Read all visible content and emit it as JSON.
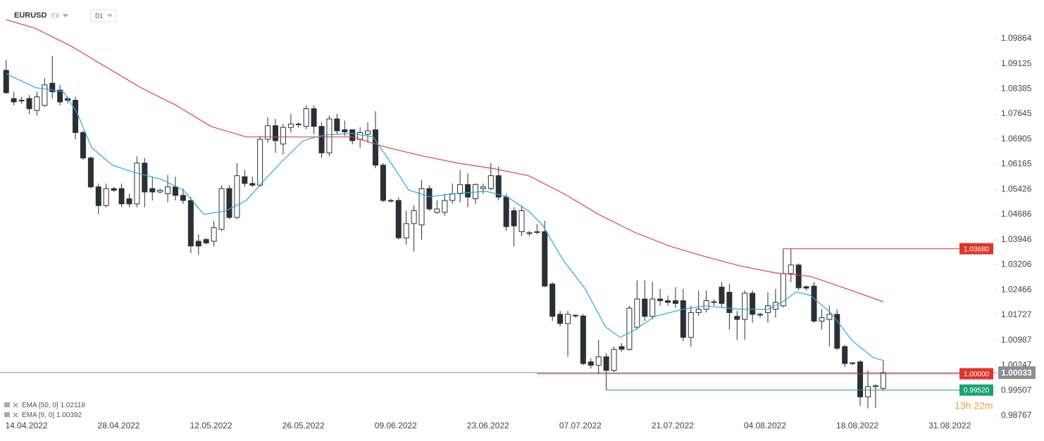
{
  "header": {
    "symbol": "EURUSD",
    "market": "FX",
    "interval": "D1"
  },
  "chart_data": {
    "type": "candlestick",
    "open": [
      1.0893,
      1.081,
      1.0805,
      1.081,
      1.0775,
      1.079,
      1.0855,
      1.0835,
      1.081,
      1.0805,
      1.071,
      1.0635,
      1.055,
      1.0495,
      1.0545,
      1.0545,
      1.0515,
      1.05,
      1.062,
      1.0545,
      1.0535,
      1.053,
      1.055,
      1.0525,
      1.051,
      1.039,
      1.0395,
      1.039,
      1.0425,
      1.0545,
      1.046,
      1.058,
      1.056,
      1.0555,
      1.069,
      1.073,
      1.0676,
      1.0725,
      1.0735,
      1.0728,
      1.078,
      1.0728,
      1.065,
      1.075,
      1.0718,
      1.0718,
      1.069,
      1.0705,
      1.0718,
      1.0614,
      1.051,
      1.051,
      1.04,
      1.0442,
      1.0438,
      1.0545,
      1.0475,
      1.0475,
      1.051,
      1.053,
      1.0557,
      1.0515,
      1.0545,
      1.0545,
      1.0583,
      1.052,
      1.048,
      1.0418,
      1.0415,
      1.0418,
      1.0418,
      1.0264,
      1.0175,
      1.0148,
      1.0172,
      1.017,
      1.0035,
      1.0025,
      1.005,
      1.001,
      1.008,
      1.0072,
      1.0137,
      1.022,
      1.0169,
      1.022,
      1.0215,
      1.0215,
      1.0215,
      1.0107,
      1.018,
      1.019,
      1.021,
      1.0255,
      1.024,
      1.0169,
      1.016,
      1.0237,
      1.0175,
      1.018,
      1.019,
      1.02,
      1.0295,
      1.032,
      1.0256,
      1.0258,
      1.0155,
      1.016,
      1.0175,
      1.008,
      1.0032,
      1.0035,
      0.9932,
      0.9962,
      0.9957
    ],
    "high": [
      1.0924,
      1.083,
      1.0815,
      1.082,
      1.083,
      1.087,
      1.0935,
      1.085,
      1.0815,
      1.0815,
      1.0715,
      1.064,
      1.056,
      1.056,
      1.055,
      1.056,
      1.053,
      1.064,
      1.0635,
      1.058,
      1.0545,
      1.0585,
      1.058,
      1.0545,
      1.052,
      1.041,
      1.04,
      1.045,
      1.0555,
      1.0555,
      1.062,
      1.06,
      1.058,
      1.07,
      1.0755,
      1.075,
      1.0735,
      1.0765,
      1.074,
      1.079,
      1.079,
      1.074,
      1.076,
      1.0765,
      1.0745,
      1.072,
      1.0725,
      1.074,
      1.0773,
      1.062,
      1.0515,
      1.052,
      1.048,
      1.0495,
      1.057,
      1.0555,
      1.051,
      1.053,
      1.056,
      1.06,
      1.059,
      1.056,
      1.056,
      1.062,
      1.061,
      1.053,
      1.049,
      1.0495,
      1.042,
      1.044,
      1.045,
      1.027,
      1.0185,
      1.0185,
      1.0175,
      1.0175,
      1.0045,
      1.01,
      1.006,
      1.008,
      1.009,
      1.02,
      1.0275,
      1.0275,
      1.027,
      1.025,
      1.023,
      1.0255,
      1.025,
      1.02,
      1.0245,
      1.0245,
      1.022,
      1.027,
      1.0265,
      1.0185,
      1.0245,
      1.0245,
      1.018,
      1.024,
      1.025,
      1.0368,
      1.0368,
      1.0325,
      1.026,
      1.027,
      1.019,
      1.02,
      1.019,
      1.0085,
      1.0035,
      1.004,
      1.001,
      0.997,
      1.004
    ],
    "low": [
      1.0824,
      1.079,
      1.0795,
      1.0765,
      1.076,
      1.0785,
      1.081,
      1.079,
      1.0795,
      1.069,
      1.063,
      1.0545,
      1.047,
      1.049,
      1.0535,
      1.049,
      1.049,
      1.049,
      1.049,
      1.051,
      1.053,
      1.0505,
      1.051,
      1.05,
      1.0355,
      1.035,
      1.038,
      1.0375,
      1.042,
      1.0455,
      1.0455,
      1.055,
      1.055,
      1.055,
      1.068,
      1.065,
      1.0645,
      1.071,
      1.0725,
      1.072,
      1.0705,
      1.0635,
      1.064,
      1.0705,
      1.07,
      1.0675,
      1.0665,
      1.068,
      1.0605,
      1.0505,
      1.0505,
      1.0395,
      1.038,
      1.036,
      1.0395,
      1.048,
      1.047,
      1.0465,
      1.05,
      1.0505,
      1.049,
      1.05,
      1.053,
      1.054,
      1.051,
      1.042,
      1.0375,
      1.0405,
      1.0405,
      1.041,
      1.0255,
      1.0155,
      1.014,
      1.005,
      1.0165,
      1.0025,
      1.0015,
      1.0,
      0.9952,
      1.0005,
      1.0065,
      1.0068,
      1.013,
      1.0155,
      1.016,
      1.02,
      1.02,
      1.0195,
      1.0095,
      1.008,
      1.017,
      1.018,
      1.02,
      1.0195,
      1.013,
      1.01,
      1.01,
      1.015,
      1.0165,
      1.015,
      1.0165,
      1.0195,
      1.027,
      1.0245,
      1.0245,
      1.015,
      1.013,
      1.008,
      1.007,
      1.002,
      1.0025,
      0.9905,
      0.9898,
      0.99,
      0.995
    ],
    "close": [
      1.0827,
      1.08,
      1.0803,
      1.078,
      1.0815,
      1.085,
      1.083,
      1.08,
      1.0805,
      1.071,
      1.0635,
      1.055,
      1.0495,
      1.0545,
      1.054,
      1.05,
      1.05,
      1.062,
      1.0535,
      1.0535,
      1.054,
      1.055,
      1.0525,
      1.051,
      1.0376,
      1.0376,
      1.0385,
      1.043,
      1.0545,
      1.046,
      1.0583,
      1.056,
      1.0555,
      1.069,
      1.073,
      1.0686,
      1.0725,
      1.0735,
      1.0733,
      1.078,
      1.0728,
      1.065,
      1.075,
      1.0715,
      1.0712,
      1.0686,
      1.071,
      1.0715,
      1.0614,
      1.051,
      1.0508,
      1.04,
      1.0442,
      1.048,
      1.0545,
      1.0485,
      1.0485,
      1.051,
      1.053,
      1.0557,
      1.052,
      1.0557,
      1.055,
      1.0583,
      1.052,
      1.0433,
      1.0435,
      1.048,
      1.0413,
      1.0416,
      1.0258,
      1.0169,
      1.0148,
      1.0175,
      1.017,
      1.003,
      1.0025,
      1.005,
      1.001,
      1.0072,
      1.0072,
      1.0193,
      1.022,
      1.0169,
      1.022,
      1.0215,
      1.021,
      1.0207,
      1.0107,
      1.018,
      1.019,
      1.0215,
      1.0212,
      1.0207,
      1.018,
      1.016,
      1.0237,
      1.0175,
      1.0173,
      1.02,
      1.021,
      1.0295,
      1.032,
      1.0253,
      1.0252,
      1.0155,
      1.0165,
      1.0175,
      1.0075,
      1.003,
      1.003,
      0.9932,
      0.9962,
      0.9965,
      1.0003
    ],
    "up_color": "#ffffff",
    "down_color": "#2b2f36",
    "outline_color": "#2b2f36",
    "lines": [
      {
        "name": "EMA [50, 0]",
        "legend_value": 1.02118,
        "color": "#e0463c",
        "x": [
          0,
          3.75,
          8.3,
          12.9,
          17.5,
          22.1,
          26.6,
          31.2,
          35.8,
          40.4,
          45,
          49.5,
          54.1,
          58.7,
          63.3,
          67.9,
          72.4,
          77,
          81.6,
          86.2,
          90.8,
          95.3,
          99.9,
          104.5,
          109.1,
          114
        ],
        "values": [
          1.1042,
          1.1017,
          1.0966,
          1.0904,
          1.0842,
          1.079,
          1.0728,
          1.0697,
          1.0697,
          1.0697,
          1.0697,
          1.0666,
          1.0641,
          1.062,
          1.0604,
          1.0583,
          1.0531,
          1.0469,
          1.0417,
          1.0376,
          1.0345,
          1.0318,
          1.0297,
          1.0287,
          1.0251,
          1.0212
        ]
      },
      {
        "name": "EMA [9, 0]",
        "legend_value": 1.00392,
        "color": "#29a9e0",
        "x": [
          0,
          3.8,
          7.4,
          9.2,
          11.1,
          13.8,
          16.6,
          20.2,
          23,
          25.7,
          28.5,
          31.2,
          33.1,
          35.8,
          38.6,
          41.3,
          45,
          47.7,
          50.5,
          52.3,
          55,
          58.7,
          62.4,
          65.1,
          67.9,
          69.7,
          72.4,
          75.2,
          77.9,
          79.8,
          81.6,
          84.3,
          88,
          90.8,
          95.3,
          99,
          100.8,
          102.7,
          104.5,
          107.2,
          110,
          112.7,
          114
        ],
        "values": [
          1.0883,
          1.0842,
          1.0831,
          1.0769,
          1.0666,
          1.0614,
          1.0593,
          1.0572,
          1.0541,
          1.0469,
          1.0479,
          1.051,
          1.0558,
          1.0624,
          1.0686,
          1.0703,
          1.0707,
          1.0697,
          1.0604,
          1.0541,
          1.0521,
          1.0531,
          1.0537,
          1.0521,
          1.0479,
          1.0438,
          1.0334,
          1.0252,
          1.0138,
          1.0107,
          1.0128,
          1.0169,
          1.019,
          1.02,
          1.019,
          1.019,
          1.021,
          1.0241,
          1.0231,
          1.0179,
          1.0096,
          1.0048,
          1.0039
        ]
      }
    ],
    "levels": [
      {
        "value": 1.0368,
        "label": "1.03680",
        "color": "#e0352b",
        "from": 101
      },
      {
        "value": 1.0,
        "label": "1.00000",
        "color": "#e0352b",
        "from": 69
      },
      {
        "value": 0.9952,
        "label": "0.99520",
        "color": "#1aa36f",
        "from": 78
      }
    ],
    "current_price": {
      "value": 1.00033,
      "label": "1.00033",
      "color": "#8a8f96"
    },
    "countdown": "13h 22m",
    "xlim": [
      -0.8,
      128.3
    ],
    "xticks": [
      {
        "value": 3,
        "label": "14.04.2022"
      },
      {
        "value": 15,
        "label": "28.04.2022"
      },
      {
        "value": 27,
        "label": "12.05.2022"
      },
      {
        "value": 39,
        "label": "26.05.2022"
      },
      {
        "value": 51,
        "label": "09.06.2022"
      },
      {
        "value": 63,
        "label": "23.06.2022"
      },
      {
        "value": 75,
        "label": "07.07.2022"
      },
      {
        "value": 87,
        "label": "21.07.2022"
      },
      {
        "value": 99,
        "label": "04.08.2022"
      },
      {
        "value": 111,
        "label": "18.08.2022"
      },
      {
        "value": 123,
        "label": "31.08.2022"
      }
    ],
    "ylim": [
      0.9858,
      1.11
    ],
    "yticks": [
      1.09864,
      1.09125,
      1.08385,
      1.07645,
      1.06905,
      1.06165,
      1.05426,
      1.04686,
      1.03946,
      1.03206,
      1.02466,
      1.01727,
      1.00987,
      1.00247,
      0.99507,
      0.98767
    ]
  }
}
